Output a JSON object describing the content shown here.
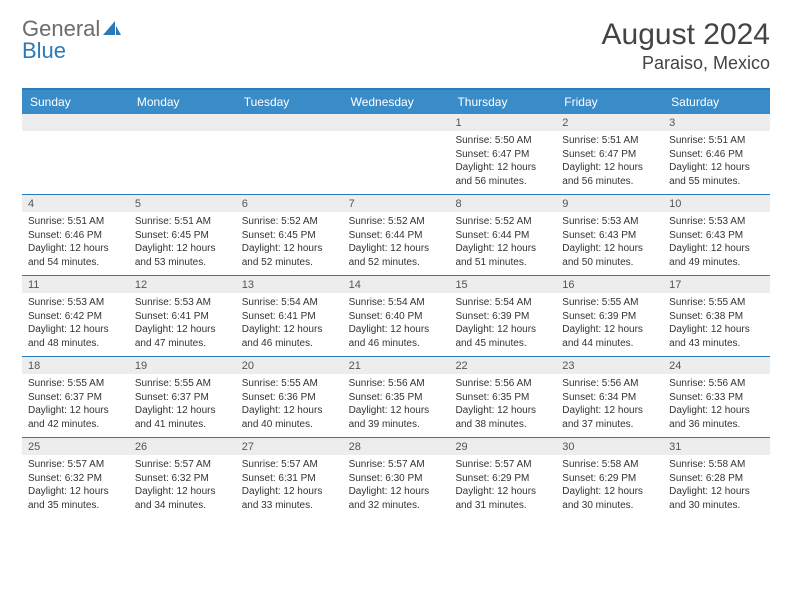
{
  "brand": {
    "word1": "General",
    "word2": "Blue",
    "icon_color": "#2a7ab9"
  },
  "title": "August 2024",
  "subtitle": "Paraiso, Mexico",
  "colors": {
    "header_bg": "#3a8cc9",
    "border": "#2a7ab9",
    "daybar_bg": "#ededed"
  },
  "weekdays": [
    "Sunday",
    "Monday",
    "Tuesday",
    "Wednesday",
    "Thursday",
    "Friday",
    "Saturday"
  ],
  "weeks": [
    [
      {
        "n": "",
        "lines": []
      },
      {
        "n": "",
        "lines": []
      },
      {
        "n": "",
        "lines": []
      },
      {
        "n": "",
        "lines": []
      },
      {
        "n": "1",
        "lines": [
          "Sunrise: 5:50 AM",
          "Sunset: 6:47 PM",
          "Daylight: 12 hours and 56 minutes."
        ]
      },
      {
        "n": "2",
        "lines": [
          "Sunrise: 5:51 AM",
          "Sunset: 6:47 PM",
          "Daylight: 12 hours and 56 minutes."
        ]
      },
      {
        "n": "3",
        "lines": [
          "Sunrise: 5:51 AM",
          "Sunset: 6:46 PM",
          "Daylight: 12 hours and 55 minutes."
        ]
      }
    ],
    [
      {
        "n": "4",
        "lines": [
          "Sunrise: 5:51 AM",
          "Sunset: 6:46 PM",
          "Daylight: 12 hours and 54 minutes."
        ]
      },
      {
        "n": "5",
        "lines": [
          "Sunrise: 5:51 AM",
          "Sunset: 6:45 PM",
          "Daylight: 12 hours and 53 minutes."
        ]
      },
      {
        "n": "6",
        "lines": [
          "Sunrise: 5:52 AM",
          "Sunset: 6:45 PM",
          "Daylight: 12 hours and 52 minutes."
        ]
      },
      {
        "n": "7",
        "lines": [
          "Sunrise: 5:52 AM",
          "Sunset: 6:44 PM",
          "Daylight: 12 hours and 52 minutes."
        ]
      },
      {
        "n": "8",
        "lines": [
          "Sunrise: 5:52 AM",
          "Sunset: 6:44 PM",
          "Daylight: 12 hours and 51 minutes."
        ]
      },
      {
        "n": "9",
        "lines": [
          "Sunrise: 5:53 AM",
          "Sunset: 6:43 PM",
          "Daylight: 12 hours and 50 minutes."
        ]
      },
      {
        "n": "10",
        "lines": [
          "Sunrise: 5:53 AM",
          "Sunset: 6:43 PM",
          "Daylight: 12 hours and 49 minutes."
        ]
      }
    ],
    [
      {
        "n": "11",
        "lines": [
          "Sunrise: 5:53 AM",
          "Sunset: 6:42 PM",
          "Daylight: 12 hours and 48 minutes."
        ]
      },
      {
        "n": "12",
        "lines": [
          "Sunrise: 5:53 AM",
          "Sunset: 6:41 PM",
          "Daylight: 12 hours and 47 minutes."
        ]
      },
      {
        "n": "13",
        "lines": [
          "Sunrise: 5:54 AM",
          "Sunset: 6:41 PM",
          "Daylight: 12 hours and 46 minutes."
        ]
      },
      {
        "n": "14",
        "lines": [
          "Sunrise: 5:54 AM",
          "Sunset: 6:40 PM",
          "Daylight: 12 hours and 46 minutes."
        ]
      },
      {
        "n": "15",
        "lines": [
          "Sunrise: 5:54 AM",
          "Sunset: 6:39 PM",
          "Daylight: 12 hours and 45 minutes."
        ]
      },
      {
        "n": "16",
        "lines": [
          "Sunrise: 5:55 AM",
          "Sunset: 6:39 PM",
          "Daylight: 12 hours and 44 minutes."
        ]
      },
      {
        "n": "17",
        "lines": [
          "Sunrise: 5:55 AM",
          "Sunset: 6:38 PM",
          "Daylight: 12 hours and 43 minutes."
        ]
      }
    ],
    [
      {
        "n": "18",
        "lines": [
          "Sunrise: 5:55 AM",
          "Sunset: 6:37 PM",
          "Daylight: 12 hours and 42 minutes."
        ]
      },
      {
        "n": "19",
        "lines": [
          "Sunrise: 5:55 AM",
          "Sunset: 6:37 PM",
          "Daylight: 12 hours and 41 minutes."
        ]
      },
      {
        "n": "20",
        "lines": [
          "Sunrise: 5:55 AM",
          "Sunset: 6:36 PM",
          "Daylight: 12 hours and 40 minutes."
        ]
      },
      {
        "n": "21",
        "lines": [
          "Sunrise: 5:56 AM",
          "Sunset: 6:35 PM",
          "Daylight: 12 hours and 39 minutes."
        ]
      },
      {
        "n": "22",
        "lines": [
          "Sunrise: 5:56 AM",
          "Sunset: 6:35 PM",
          "Daylight: 12 hours and 38 minutes."
        ]
      },
      {
        "n": "23",
        "lines": [
          "Sunrise: 5:56 AM",
          "Sunset: 6:34 PM",
          "Daylight: 12 hours and 37 minutes."
        ]
      },
      {
        "n": "24",
        "lines": [
          "Sunrise: 5:56 AM",
          "Sunset: 6:33 PM",
          "Daylight: 12 hours and 36 minutes."
        ]
      }
    ],
    [
      {
        "n": "25",
        "lines": [
          "Sunrise: 5:57 AM",
          "Sunset: 6:32 PM",
          "Daylight: 12 hours and 35 minutes."
        ]
      },
      {
        "n": "26",
        "lines": [
          "Sunrise: 5:57 AM",
          "Sunset: 6:32 PM",
          "Daylight: 12 hours and 34 minutes."
        ]
      },
      {
        "n": "27",
        "lines": [
          "Sunrise: 5:57 AM",
          "Sunset: 6:31 PM",
          "Daylight: 12 hours and 33 minutes."
        ]
      },
      {
        "n": "28",
        "lines": [
          "Sunrise: 5:57 AM",
          "Sunset: 6:30 PM",
          "Daylight: 12 hours and 32 minutes."
        ]
      },
      {
        "n": "29",
        "lines": [
          "Sunrise: 5:57 AM",
          "Sunset: 6:29 PM",
          "Daylight: 12 hours and 31 minutes."
        ]
      },
      {
        "n": "30",
        "lines": [
          "Sunrise: 5:58 AM",
          "Sunset: 6:29 PM",
          "Daylight: 12 hours and 30 minutes."
        ]
      },
      {
        "n": "31",
        "lines": [
          "Sunrise: 5:58 AM",
          "Sunset: 6:28 PM",
          "Daylight: 12 hours and 30 minutes."
        ]
      }
    ]
  ]
}
